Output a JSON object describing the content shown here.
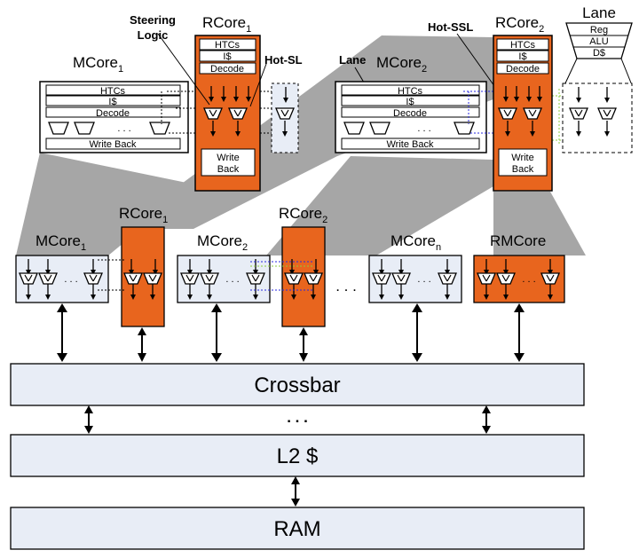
{
  "labels": {
    "steering_logic_line1": "Steering",
    "steering_logic_line2": "Logic",
    "rcore1_top": "RCore",
    "rcore1_top_sub": "1",
    "mcore1_top": "MCore",
    "mcore1_top_sub": "1",
    "hot_sl": "Hot-SL",
    "lane_mid": "Lane",
    "mcore2_top": "MCore",
    "mcore2_top_sub": "2",
    "hot_ssl": "Hot-SSL",
    "rcore2_top": "RCore",
    "rcore2_top_sub": "2",
    "lane_right": "Lane"
  },
  "stage": {
    "htcs": "HTCs",
    "icache": "I$",
    "decode": "Decode",
    "write_back": "Write Back",
    "write": "Write",
    "back": "Back",
    "dots": ". . .",
    "reg": "Reg",
    "alu": "ALU",
    "dcache": "D$"
  },
  "bottom_cores": {
    "mcore1": "MCore",
    "mcore1_sub": "1",
    "rcore1": "RCore",
    "rcore1_sub": "1",
    "mcore2": "MCore",
    "mcore2_sub": "2",
    "rcore2": "RCore",
    "rcore2_sub": "2",
    "mcoren": "MCore",
    "mcoren_sub": "n",
    "rmcore": "RMCore",
    "between_dots": ". . .",
    "inner_dots": ". . ."
  },
  "memory": {
    "crossbar": "Crossbar",
    "l2": "L2 $",
    "ram": "RAM",
    "dots": ". . ."
  },
  "colors": {
    "orange": "#e8651e",
    "light_blue": "#e8edf6",
    "gray": "#a6a6a6",
    "dashed_blue": "#2a2ae0",
    "dashed_green": "#8ccc3c"
  }
}
